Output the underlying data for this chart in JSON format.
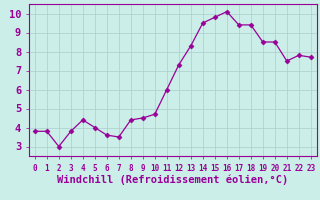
{
  "x": [
    0,
    1,
    2,
    3,
    4,
    5,
    6,
    7,
    8,
    9,
    10,
    11,
    12,
    13,
    14,
    15,
    16,
    17,
    18,
    19,
    20,
    21,
    22,
    23
  ],
  "y": [
    3.8,
    3.8,
    3.0,
    3.8,
    4.4,
    4.0,
    3.6,
    3.5,
    4.4,
    4.5,
    4.7,
    6.0,
    7.3,
    8.3,
    9.5,
    9.8,
    10.1,
    9.4,
    9.4,
    8.5,
    8.5,
    7.5,
    7.8,
    7.7
  ],
  "line_color": "#990099",
  "marker": "D",
  "marker_size": 2.5,
  "bg_color": "#cceee8",
  "grid_color": "#aacccc",
  "xlabel": "Windchill (Refroidissement éolien,°C)",
  "ylabel": "",
  "title": "",
  "xlim": [
    -0.5,
    23.5
  ],
  "ylim": [
    2.5,
    10.5
  ],
  "yticks": [
    3,
    4,
    5,
    6,
    7,
    8,
    9,
    10
  ],
  "xticks": [
    0,
    1,
    2,
    3,
    4,
    5,
    6,
    7,
    8,
    9,
    10,
    11,
    12,
    13,
    14,
    15,
    16,
    17,
    18,
    19,
    20,
    21,
    22,
    23
  ],
  "xlabel_fontsize": 7.5,
  "xtick_fontsize": 5.5,
  "ytick_fontsize": 7.5
}
